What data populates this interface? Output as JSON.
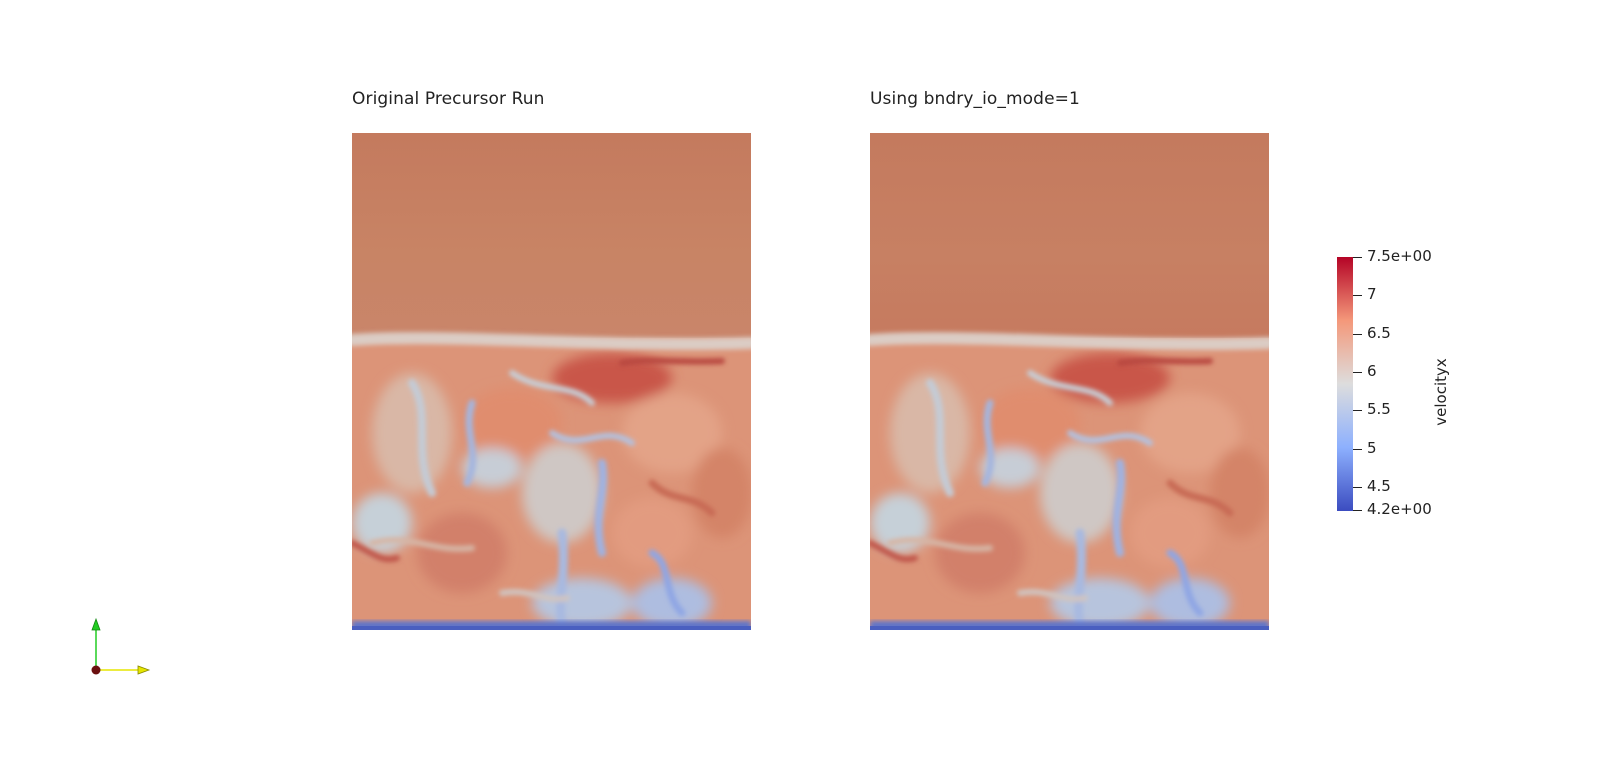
{
  "panels": [
    {
      "title": "Original Precursor Run"
    },
    {
      "title": "Using bndry_io_mode=1"
    }
  ],
  "colorbar": {
    "title": "velocityx",
    "range": [
      4.2,
      7.5
    ],
    "ticks": [
      {
        "value": 7.5,
        "label": "7.5e+00"
      },
      {
        "value": 7.0,
        "label": "7"
      },
      {
        "value": 6.5,
        "label": "6.5"
      },
      {
        "value": 6.0,
        "label": "6"
      },
      {
        "value": 5.5,
        "label": "5.5"
      },
      {
        "value": 5.0,
        "label": "5"
      },
      {
        "value": 4.5,
        "label": "4.5"
      },
      {
        "value": 4.2,
        "label": "4.2e+00"
      }
    ],
    "colors": {
      "low": "#3b4cc0",
      "mid": "#dddddd",
      "high": "#b40426"
    }
  },
  "colors": {
    "field_upper": "#c47b5f",
    "field_layer": "#d6c4bb"
  }
}
